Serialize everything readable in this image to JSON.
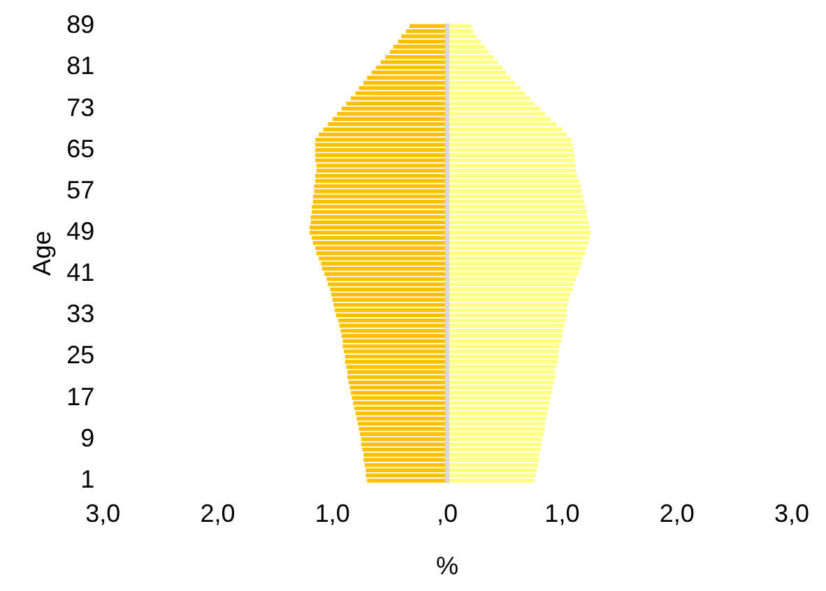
{
  "chart_data": {
    "type": "bar",
    "orientation": "horizontal",
    "stacked": true,
    "xlabel": "%",
    "ylabel": "Age",
    "categories": [
      "89",
      null,
      null,
      null,
      null,
      null,
      null,
      null,
      "81",
      null,
      null,
      null,
      null,
      null,
      null,
      null,
      "73",
      null,
      null,
      null,
      null,
      null,
      null,
      null,
      "65",
      null,
      null,
      null,
      null,
      null,
      null,
      null,
      "57",
      null,
      null,
      null,
      null,
      null,
      null,
      null,
      "49",
      null,
      null,
      null,
      null,
      null,
      null,
      null,
      "41",
      null,
      null,
      null,
      null,
      null,
      null,
      null,
      "33",
      null,
      null,
      null,
      null,
      null,
      null,
      null,
      "25",
      null,
      null,
      null,
      null,
      null,
      null,
      null,
      "17",
      null,
      null,
      null,
      null,
      null,
      null,
      null,
      "9",
      null,
      null,
      null,
      null,
      null,
      null,
      null,
      "1"
    ],
    "series": [
      {
        "color": "#ffc000",
        "values": [
          -0.33,
          -0.36,
          -0.4,
          -0.43,
          -0.47,
          -0.5,
          -0.54,
          -0.58,
          -0.62,
          -0.66,
          -0.7,
          -0.73,
          -0.77,
          -0.8,
          -0.84,
          -0.88,
          -0.92,
          -0.96,
          -1.0,
          -1.04,
          -1.08,
          -1.12,
          -1.15,
          -1.15,
          -1.15,
          -1.15,
          -1.15,
          -1.14,
          -1.14,
          -1.15,
          -1.15,
          -1.16,
          -1.16,
          -1.17,
          -1.17,
          -1.18,
          -1.18,
          -1.19,
          -1.19,
          -1.2,
          -1.2,
          -1.18,
          -1.17,
          -1.15,
          -1.14,
          -1.12,
          -1.1,
          -1.09,
          -1.07,
          -1.05,
          -1.04,
          -1.02,
          -1.01,
          -1.0,
          -0.99,
          -0.98,
          -0.97,
          -0.95,
          -0.94,
          -0.93,
          -0.92,
          -0.91,
          -0.91,
          -0.9,
          -0.89,
          -0.89,
          -0.88,
          -0.87,
          -0.87,
          -0.86,
          -0.85,
          -0.84,
          -0.83,
          -0.82,
          -0.81,
          -0.8,
          -0.79,
          -0.78,
          -0.77,
          -0.76,
          -0.75,
          -0.75,
          -0.74,
          -0.73,
          -0.73,
          -0.72,
          -0.71,
          -0.71,
          -0.7
        ]
      },
      {
        "color": "#ffff80",
        "values": [
          0.21,
          0.23,
          0.25,
          0.29,
          0.33,
          0.36,
          0.4,
          0.44,
          0.48,
          0.51,
          0.55,
          0.59,
          0.64,
          0.68,
          0.72,
          0.76,
          0.81,
          0.85,
          0.9,
          0.95,
          1.0,
          1.04,
          1.08,
          1.09,
          1.1,
          1.11,
          1.11,
          1.12,
          1.12,
          1.13,
          1.15,
          1.16,
          1.17,
          1.18,
          1.19,
          1.2,
          1.21,
          1.22,
          1.23,
          1.24,
          1.25,
          1.24,
          1.23,
          1.21,
          1.2,
          1.18,
          1.17,
          1.15,
          1.14,
          1.12,
          1.1,
          1.09,
          1.07,
          1.06,
          1.05,
          1.04,
          1.04,
          1.03,
          1.02,
          1.01,
          1.0,
          0.99,
          0.98,
          0.97,
          0.97,
          0.96,
          0.95,
          0.94,
          0.94,
          0.93,
          0.92,
          0.91,
          0.9,
          0.89,
          0.88,
          0.87,
          0.86,
          0.85,
          0.85,
          0.84,
          0.83,
          0.82,
          0.81,
          0.8,
          0.8,
          0.79,
          0.78,
          0.77,
          0.76
        ]
      }
    ],
    "xlim": [
      -3,
      3
    ],
    "xticks": [
      {
        "value": -3,
        "label": "3,0"
      },
      {
        "value": -2,
        "label": "2,0"
      },
      {
        "value": -1,
        "label": "1,0"
      },
      {
        "value": 0,
        "label": ",0"
      },
      {
        "value": 1,
        "label": "1,0"
      },
      {
        "value": 2,
        "label": "2,0"
      },
      {
        "value": 3,
        "label": "3,0"
      }
    ],
    "ref_lines": [
      {
        "axis": "x",
        "value": 0,
        "color": "#d9d9d9"
      }
    ],
    "grid": false,
    "legend": false
  }
}
